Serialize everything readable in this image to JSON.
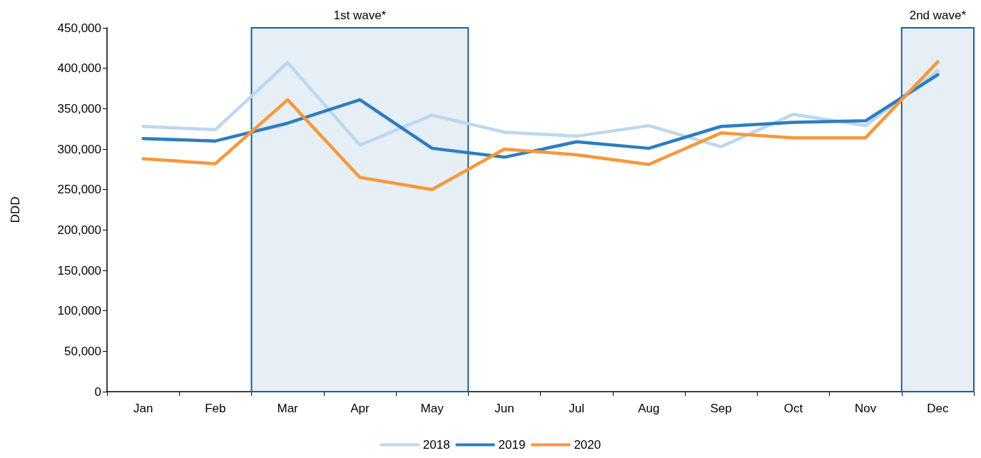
{
  "chart_data": {
    "type": "line",
    "ylabel": "DDD",
    "categories": [
      "Jan",
      "Feb",
      "Mar",
      "Apr",
      "May",
      "Jun",
      "Jul",
      "Aug",
      "Sep",
      "Oct",
      "Nov",
      "Dec"
    ],
    "series": [
      {
        "name": "2018",
        "color": "#bdd7ee",
        "values": [
          328000,
          324000,
          407000,
          305000,
          342000,
          321000,
          316000,
          329000,
          303000,
          343000,
          329000,
          397000
        ]
      },
      {
        "name": "2019",
        "color": "#2e7dbf",
        "values": [
          313000,
          310000,
          332000,
          361000,
          301000,
          290000,
          309000,
          301000,
          328000,
          333000,
          335000,
          392000
        ]
      },
      {
        "name": "2020",
        "color": "#f7983a",
        "values": [
          288000,
          282000,
          361000,
          265000,
          250000,
          300000,
          293000,
          281000,
          320000,
          314000,
          314000,
          408000
        ]
      }
    ],
    "ylim": [
      0,
      450000
    ],
    "yticks": [
      {
        "value": 0,
        "label": "0"
      },
      {
        "value": 50000,
        "label": "50,000"
      },
      {
        "value": 100000,
        "label": "100,000"
      },
      {
        "value": 150000,
        "label": "150,000"
      },
      {
        "value": 200000,
        "label": "200,000"
      },
      {
        "value": 250000,
        "label": "250,000"
      },
      {
        "value": 300000,
        "label": "300,000"
      },
      {
        "value": 350000,
        "label": "350,000"
      },
      {
        "value": 400000,
        "label": "400,000"
      },
      {
        "value": 450000,
        "label": "450,000"
      }
    ],
    "bands": [
      {
        "axis": "x",
        "from": "Mar",
        "to": "May",
        "label": "1st wave*",
        "color": "#e6eef6"
      },
      {
        "axis": "x",
        "from": "Dec",
        "to": "Dec",
        "label": "2nd wave*",
        "color": "#e6eef6"
      }
    ],
    "grid": false,
    "legend": "bottom",
    "marker": "none",
    "line_style": "solid"
  }
}
